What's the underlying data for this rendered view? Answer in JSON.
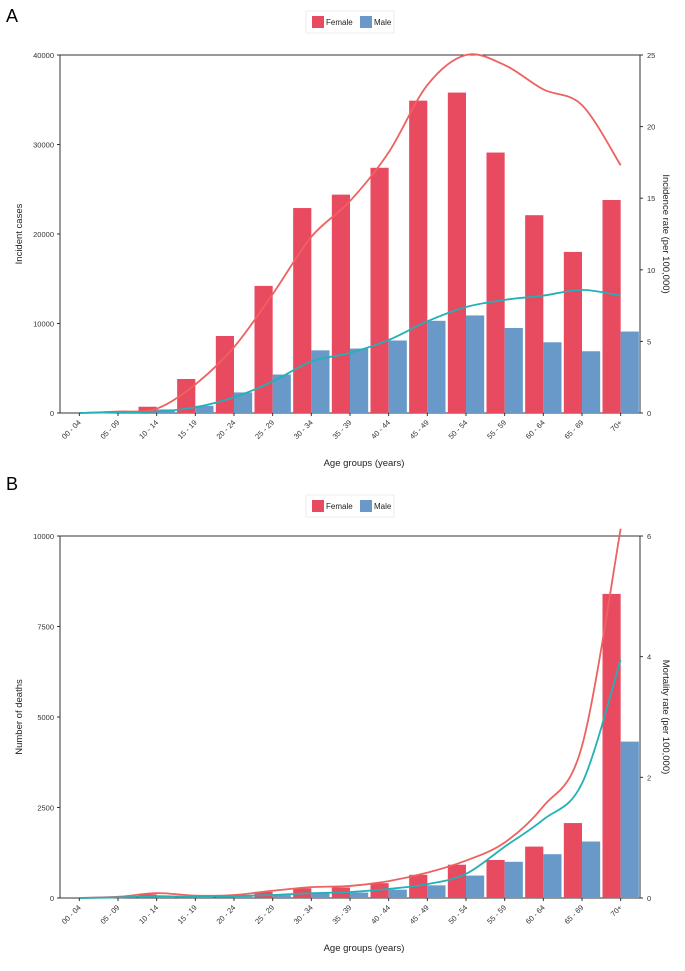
{
  "colors": {
    "female_bar": "#E84A5F",
    "male_bar": "#6899C9",
    "female_line": "#EE6161",
    "male_line": "#22B1B5",
    "axis": "#333333"
  },
  "chart_data": [
    {
      "type": "bar",
      "panel": "A",
      "categories": [
        "00 - 04",
        "05 - 09",
        "10 - 14",
        "15 - 19",
        "20 - 24",
        "25 - 29",
        "30 - 34",
        "35 - 39",
        "40 - 44",
        "45 - 49",
        "50 - 54",
        "55 - 59",
        "60 - 64",
        "65 - 69",
        "70+"
      ],
      "xlabel": "Age groups (years)",
      "ylabel": "Incident cases",
      "y2label": "Incidence rate (per 100,000)",
      "ylim": [
        0,
        40000
      ],
      "yticks": [
        0,
        10000,
        20000,
        30000,
        40000
      ],
      "y2lim": [
        0,
        25
      ],
      "y2ticks": [
        0,
        5,
        10,
        15,
        20,
        25
      ],
      "legend": [
        "Female",
        "Male"
      ],
      "legend_position": "top-center",
      "series": [
        {
          "name": "Female",
          "kind": "bar",
          "values": [
            0,
            100,
            700,
            3800,
            8600,
            14200,
            22900,
            24400,
            27400,
            34900,
            35800,
            29100,
            22100,
            18000,
            23800
          ]
        },
        {
          "name": "Male",
          "kind": "bar",
          "values": [
            0,
            100,
            400,
            800,
            2300,
            4300,
            7000,
            7200,
            8100,
            10300,
            10900,
            9500,
            7900,
            6900,
            9100
          ]
        },
        {
          "name": "Female",
          "kind": "line",
          "axis": "right",
          "values": [
            0,
            0.1,
            0.3,
            2.0,
            4.6,
            8.3,
            12.3,
            14.8,
            18.2,
            22.9,
            25.0,
            24.3,
            22.6,
            21.5,
            17.3
          ]
        },
        {
          "name": "Male",
          "kind": "line",
          "axis": "right",
          "values": [
            0,
            0.05,
            0.1,
            0.4,
            1.1,
            2.2,
            3.6,
            4.2,
            5.1,
            6.4,
            7.4,
            7.9,
            8.2,
            8.6,
            8.2
          ]
        }
      ]
    },
    {
      "type": "bar",
      "panel": "B",
      "categories": [
        "00 - 04",
        "05 - 09",
        "10 - 14",
        "15 - 19",
        "20 - 24",
        "25 - 29",
        "30 - 34",
        "35 - 39",
        "40 - 44",
        "45 - 49",
        "50 - 54",
        "55 - 59",
        "60 - 64",
        "65 - 69",
        "70+"
      ],
      "xlabel": "Age groups (years)",
      "ylabel": "Number of deaths",
      "y2label": "Mortality rate (per 100,000)",
      "ylim": [
        0,
        10000
      ],
      "yticks": [
        0,
        2500,
        5000,
        7500,
        10000
      ],
      "y2lim": [
        0,
        6
      ],
      "y2ticks": [
        0,
        2,
        4,
        6
      ],
      "legend": [
        "Female",
        "Male"
      ],
      "legend_position": "top-center",
      "series": [
        {
          "name": "Female",
          "kind": "bar",
          "values": [
            0,
            20,
            100,
            50,
            60,
            170,
            270,
            290,
            410,
            640,
            920,
            1050,
            1420,
            2070,
            8400
          ]
        },
        {
          "name": "Male",
          "kind": "bar",
          "values": [
            0,
            10,
            50,
            30,
            40,
            80,
            130,
            150,
            230,
            350,
            620,
            1000,
            1210,
            1560,
            4320
          ]
        },
        {
          "name": "Female",
          "kind": "line",
          "axis": "right",
          "values": [
            0,
            0.02,
            0.08,
            0.04,
            0.05,
            0.12,
            0.18,
            0.2,
            0.28,
            0.42,
            0.62,
            0.92,
            1.52,
            2.52,
            6.12
          ]
        },
        {
          "name": "Male",
          "kind": "line",
          "axis": "right",
          "values": [
            0,
            0.01,
            0.03,
            0.02,
            0.03,
            0.05,
            0.08,
            0.1,
            0.15,
            0.23,
            0.4,
            0.85,
            1.3,
            1.9,
            3.95
          ]
        }
      ]
    }
  ]
}
